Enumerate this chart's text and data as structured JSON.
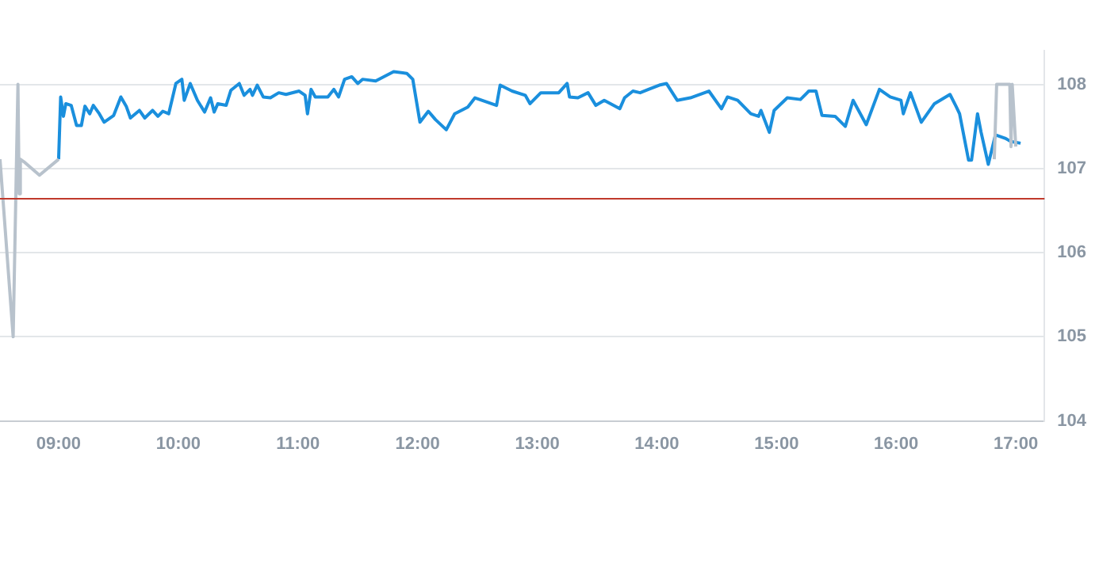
{
  "chart_data": {
    "type": "line",
    "marker": "none",
    "line_style": "solid",
    "grid": "y",
    "legend": false,
    "xlim": [
      8.51,
      17.24
    ],
    "xticks": [
      {
        "value": 9,
        "label": "09:00"
      },
      {
        "value": 10,
        "label": "10:00"
      },
      {
        "value": 11,
        "label": "11:00"
      },
      {
        "value": 12,
        "label": "12:00"
      },
      {
        "value": 13,
        "label": "13:00"
      },
      {
        "value": 14,
        "label": "14:00"
      },
      {
        "value": 15,
        "label": "15:00"
      },
      {
        "value": 16,
        "label": "16:00"
      },
      {
        "value": 17,
        "label": "17:00"
      }
    ],
    "ylim": [
      104,
      108.4
    ],
    "yticks": [
      104,
      105,
      106,
      107,
      108
    ],
    "ref_lines": [
      {
        "axis": "y",
        "value": 106.64,
        "color": "#c0392b"
      }
    ],
    "series": [
      {
        "color": "#b8c2cc",
        "x": [
          8.51,
          8.62,
          8.66,
          8.67,
          8.68,
          8.71,
          8.84,
          9.0
        ],
        "values": [
          107.11,
          105.0,
          108.0,
          106.7,
          107.11,
          107.08,
          106.92,
          107.11
        ]
      },
      {
        "color": "#b8c2cc",
        "x": [
          16.82,
          16.84,
          16.95,
          16.96,
          16.97,
          17.0
        ],
        "values": [
          107.11,
          108.0,
          108.0,
          107.26,
          108.0,
          107.26
        ]
      },
      {
        "color": "#1a8fdd",
        "x": [
          9.0,
          9.017,
          9.04,
          9.06,
          9.105,
          9.15,
          9.19,
          9.22,
          9.26,
          9.29,
          9.34,
          9.38,
          9.46,
          9.52,
          9.565,
          9.6,
          9.675,
          9.72,
          9.785,
          9.83,
          9.87,
          9.92,
          9.98,
          10.03,
          10.05,
          10.1,
          10.16,
          10.22,
          10.27,
          10.3,
          10.33,
          10.4,
          10.44,
          10.51,
          10.55,
          10.6,
          10.62,
          10.66,
          10.71,
          10.77,
          10.84,
          10.9,
          11.01,
          11.06,
          11.08,
          11.11,
          11.145,
          11.25,
          11.3,
          11.34,
          11.39,
          11.45,
          11.5,
          11.54,
          11.65,
          11.8,
          11.91,
          11.96,
          12.02,
          12.09,
          12.15,
          12.24,
          12.31,
          12.42,
          12.48,
          12.66,
          12.69,
          12.79,
          12.9,
          12.94,
          13.03,
          13.18,
          13.25,
          13.27,
          13.34,
          13.425,
          13.49,
          13.56,
          13.69,
          13.73,
          13.8,
          13.86,
          13.93,
          14.02,
          14.08,
          14.17,
          14.28,
          14.435,
          14.54,
          14.59,
          14.675,
          14.785,
          14.85,
          14.87,
          14.94,
          14.98,
          15.09,
          15.2,
          15.27,
          15.33,
          15.38,
          15.49,
          15.575,
          15.64,
          15.75,
          15.86,
          15.95,
          16.04,
          16.06,
          16.12,
          16.21,
          16.32,
          16.45,
          16.5,
          16.53,
          16.605,
          16.63,
          16.68,
          16.71,
          16.77,
          16.83,
          16.91,
          16.96,
          17.04
        ],
        "values": [
          107.11,
          107.85,
          107.62,
          107.77,
          107.75,
          107.51,
          107.51,
          107.74,
          107.65,
          107.75,
          107.65,
          107.55,
          107.63,
          107.85,
          107.74,
          107.6,
          107.69,
          107.6,
          107.69,
          107.62,
          107.68,
          107.65,
          108.01,
          108.06,
          107.81,
          108.01,
          107.81,
          107.67,
          107.84,
          107.67,
          107.77,
          107.75,
          107.93,
          108.01,
          107.87,
          107.94,
          107.87,
          107.99,
          107.85,
          107.84,
          107.9,
          107.88,
          107.92,
          107.87,
          107.65,
          107.94,
          107.85,
          107.85,
          107.94,
          107.85,
          108.06,
          108.09,
          108.01,
          108.06,
          108.04,
          108.15,
          108.13,
          108.06,
          107.55,
          107.68,
          107.58,
          107.46,
          107.65,
          107.73,
          107.84,
          107.75,
          107.99,
          107.92,
          107.87,
          107.77,
          107.9,
          107.9,
          108.01,
          107.85,
          107.84,
          107.9,
          107.75,
          107.81,
          107.71,
          107.84,
          107.92,
          107.9,
          107.94,
          107.99,
          108.01,
          107.81,
          107.84,
          107.92,
          107.71,
          107.85,
          107.81,
          107.65,
          107.62,
          107.69,
          107.43,
          107.69,
          107.84,
          107.82,
          107.92,
          107.92,
          107.63,
          107.62,
          107.5,
          107.81,
          107.52,
          107.94,
          107.85,
          107.81,
          107.65,
          107.9,
          107.55,
          107.77,
          107.88,
          107.74,
          107.65,
          107.1,
          107.1,
          107.65,
          107.43,
          107.05,
          107.4,
          107.36,
          107.32,
          107.3
        ]
      }
    ]
  }
}
